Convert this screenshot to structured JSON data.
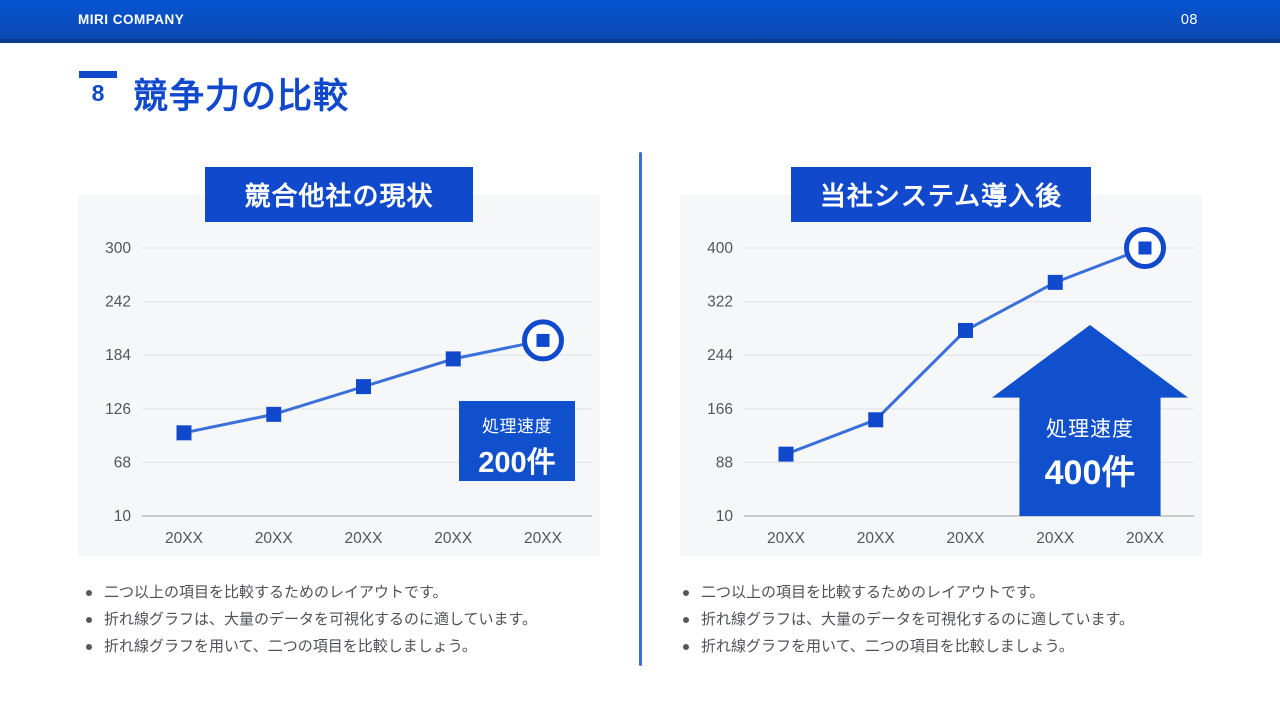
{
  "top_bar": {
    "company": "MIRI COMPANY",
    "page_number": "08"
  },
  "title": {
    "number": "8",
    "text": "競争力の比較"
  },
  "colors": {
    "primary": "#1149cc",
    "line": "#3b70d9",
    "marker": "#1149cc",
    "grid": "#e3e4e8",
    "axis": "#bcbec3",
    "tick_text": "#54565c",
    "panel_bg": "#f6f7f9",
    "topbar_top": "#0754d1",
    "topbar_bottom": "#0a49b2",
    "topbar_border": "#0a3d8a",
    "divider": "#3f6fd3",
    "bullet_text": "#4f5157"
  },
  "panels": [
    {
      "chart_data": {
        "type": "line",
        "title": "競合他社の現状",
        "categories": [
          "20XX",
          "20XX",
          "20XX",
          "20XX",
          "20XX"
        ],
        "values": [
          100,
          120,
          150,
          180,
          200
        ],
        "yticks": [
          10,
          68,
          126,
          184,
          242,
          300
        ],
        "ylim": [
          10,
          300
        ],
        "xlabel": "",
        "ylabel": "",
        "grid": true,
        "legend": false,
        "marker": "square",
        "highlight_last_point": true
      },
      "callout": {
        "label": "処理速度",
        "value": "200件",
        "shape": "box"
      },
      "bullets": [
        "二つ以上の項目を比較するためのレイアウトです。",
        "折れ線グラフは、大量のデータを可視化するのに適しています。",
        "折れ線グラフを用いて、二つの項目を比較しましょう。"
      ]
    },
    {
      "chart_data": {
        "type": "line",
        "title": "当社システム導入後",
        "categories": [
          "20XX",
          "20XX",
          "20XX",
          "20XX",
          "20XX"
        ],
        "values": [
          100,
          150,
          280,
          350,
          400
        ],
        "yticks": [
          10,
          88,
          166,
          244,
          322,
          400
        ],
        "ylim": [
          10,
          400
        ],
        "xlabel": "",
        "ylabel": "",
        "grid": true,
        "legend": false,
        "marker": "square",
        "highlight_last_point": true
      },
      "callout": {
        "label": "処理速度",
        "value": "400件",
        "shape": "arrow-up"
      },
      "bullets": [
        "二つ以上の項目を比較するためのレイアウトです。",
        "折れ線グラフは、大量のデータを可視化するのに適しています。",
        "折れ線グラフを用いて、二つの項目を比較しましょう。"
      ]
    }
  ]
}
